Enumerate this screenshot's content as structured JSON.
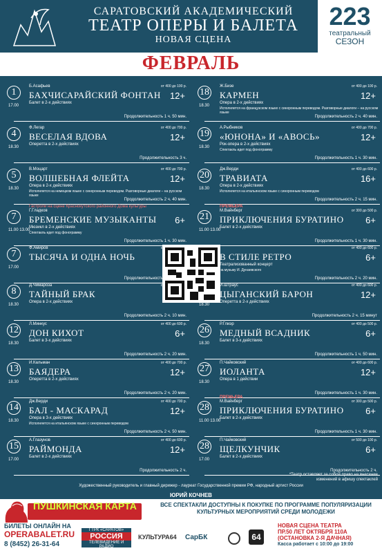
{
  "header": {
    "line1": "САРАТОВСКИЙ АКАДЕМИЧЕСКИЙ",
    "line2": "ТЕАТР ОПЕРЫ И БАЛЕТА",
    "line3": "НОВАЯ СЦЕНА"
  },
  "season": {
    "number": "223",
    "line1": "театральный",
    "line2": "СЕЗОН"
  },
  "month": "ФЕВРАЛЬ",
  "left": [
    {
      "date": "1",
      "time": "17.00",
      "author": "Б.Асафьев",
      "price": "от 400 до 100 р.",
      "title": "БАХЧИСАРАЙСКИЙ ФОНТАН",
      "age": "12+",
      "sub": "Балет в 2-х действиях",
      "note": "",
      "dur": "Продолжительность 1 ч. 50 мин.",
      "extra": ""
    },
    {
      "date": "4",
      "time": "18.30",
      "author": "Ф.Легар",
      "price": "от 400 до 700 р.",
      "title": "ВЕСЕЛАЯ ВДОВА",
      "age": "12+",
      "sub": "Оперетта в 2-х действиях",
      "note": "",
      "dur": "Продолжительность 3 ч.",
      "extra": ""
    },
    {
      "date": "5",
      "time": "18.30",
      "author": "В.Моцарт",
      "price": "от 400 до 700 р.",
      "title": "ВОЛШЕБНАЯ ФЛЕЙТА",
      "age": "12+",
      "sub": "Опера в 2-х действиях",
      "note": "Исполняется на немецком языке с синхронным переводом. Разговорные диалоги – на русском языке",
      "dur": "Продолжительность 2 ч. 40 мин.",
      "extra": ""
    },
    {
      "date": "7",
      "time": "11.00 13.00",
      "author": "Г.Гладков",
      "price": "",
      "title": "БРЕМЕНСКИЕ МУЗЫКАНТЫ",
      "age": "6+",
      "sub": "Мюзикл в 2-х действиях",
      "note": "Спектакль идет под фонограмму",
      "dur": "Продолжительность 1 ч. 30 мин.",
      "extra": "Гастроли на сцене Краснокутского районного Дома культуры"
    },
    {
      "date": "7",
      "time": "17.00",
      "author": "Ф.Амиров",
      "price": "от 400 до 700 р.",
      "title": "ТЫСЯЧА И ОДНА НОЧЬ",
      "age": "12+",
      "sub": "",
      "note": "",
      "dur": "Продолжительность 1 ч. 30 мин.",
      "extra": ""
    },
    {
      "date": "8",
      "time": "18.30",
      "author": "Д.Чимароза",
      "price": "от 400 до 600 р.",
      "title": "ТАЙНЫЙ БРАК",
      "age": "12+",
      "sub": "Опера в 2-х действиях",
      "note": "",
      "dur": "Продолжительность 2 ч. 10 мин.",
      "extra": ""
    },
    {
      "date": "12",
      "time": "18.30",
      "author": "Л.Минкус",
      "price": "от 400 до 600 р.",
      "title": "ДОН КИХОТ",
      "age": "6+",
      "sub": "Балет в 3-х действиях",
      "note": "",
      "dur": "Продолжительность 2 ч. 20 мин.",
      "extra": ""
    },
    {
      "date": "13",
      "time": "18.30",
      "author": "И.Кальман",
      "price": "от 400 до 700 р.",
      "title": "БАЯДЕРА",
      "age": "12+",
      "sub": "Оперетта в 2-х действиях",
      "note": "",
      "dur": "Продолжительность 2 ч. 20 мин.",
      "extra": ""
    },
    {
      "date": "14",
      "time": "18.30",
      "author": "Дж.Верди",
      "price": "от 400 до 700 р.",
      "title": "БАЛ - МАСКАРАД",
      "age": "12+",
      "sub": "Опера в 3-х действиях",
      "note": "Исполняется на итальянском языке с синхронным переводом",
      "dur": "Продолжительность 2 ч. 50 мин.",
      "extra": ""
    },
    {
      "date": "15",
      "time": "17.00",
      "author": "А.Глазунов",
      "price": "от 400 до 600 р.",
      "title": "РАЙМОНДА",
      "age": "12+",
      "sub": "Балет в 2-х действиях",
      "note": "",
      "dur": "Продолжительность 2 ч.",
      "extra": ""
    }
  ],
  "right": [
    {
      "date": "18",
      "time": "18.30",
      "author": "Ж.Бизе",
      "price": "от 400 до 100 р.",
      "title": "КАРМЕН",
      "age": "12+",
      "sub": "Опера в 2-х действиях",
      "note": "Исполняется на французском языке с синхронным переводом. Разговорные диалоги – на русском языке",
      "dur": "Продолжительность 2 ч. 40 мин.",
      "extra": ""
    },
    {
      "date": "19",
      "time": "18.30",
      "author": "А.Рыбников",
      "price": "от 400 до 700 р.",
      "title": "«ЮНОНА» И «АВОСЬ»",
      "age": "12+",
      "sub": "Рок-опера в 2-х действиях",
      "note": "Спектакль идет под фонограмму",
      "dur": "Продолжительность 1 ч. 30 мин.",
      "extra": ""
    },
    {
      "date": "20",
      "time": "18.30",
      "author": "Дж.Верди",
      "price": "от 400 до 600 р.",
      "title": "ТРАВИАТА",
      "age": "16+",
      "sub": "Опера в 2-х действиях",
      "note": "Исполняется на итальянском языке с синхронным переводом",
      "dur": "Продолжительность 2 ч. 15 мин.",
      "extra": ""
    },
    {
      "date": "21",
      "time": "11.00 13.00",
      "author": "М.Вайнберг",
      "price": "от 300 до 500 р.",
      "title": "ПРИКЛЮЧЕНИЯ БУРАТИНО",
      "age": "6+",
      "sub": "Балет в 2-х действиях",
      "note": "",
      "dur": "Продолжительность 1 ч. 30 мин.",
      "extra": "ПРЕМЬЕРА"
    },
    {
      "date": "22",
      "time": "17.00",
      "author": "",
      "price": "от 400 до 600 р.",
      "title": "В СТИЛЕ РЕТРО",
      "age": "6+",
      "sub": "Театрализованный концерт",
      "note": "на музыку И. Дунаевского",
      "dur": "Продолжительность 2 ч. 20 мин.",
      "extra": ""
    },
    {
      "date": "25",
      "time": "18.30",
      "author": "И.Штраус",
      "price": "от 400 до 600 р.",
      "title": "ЦЫГАНСКИЙ БАРОН",
      "age": "12+",
      "sub": "Оперетта в 2-х действиях",
      "note": "",
      "dur": "Продолжительность 2 ч. 15 минут",
      "extra": ""
    },
    {
      "date": "26",
      "time": "18.30",
      "author": "Р.Глиэр",
      "price": "от 400 до 500 р.",
      "title": "МЕДНЫЙ ВСАДНИК",
      "age": "6+",
      "sub": "Балет в 3-х действиях",
      "note": "",
      "dur": "Продолжительность 1 ч. 50 мин.",
      "extra": ""
    },
    {
      "date": "27",
      "time": "18.30",
      "author": "П.Чайковский",
      "price": "от 400 до 600 р.",
      "title": "ИОЛАНТА",
      "age": "12+",
      "sub": "Опера в 1 действии",
      "note": "",
      "dur": "Продолжительность 1 ч. 30 мин.",
      "extra": ""
    },
    {
      "date": "28",
      "time": "11.00 13.00",
      "author": "М.Вайнберг",
      "price": "от 300 до 500 р.",
      "title": "ПРИКЛЮЧЕНИЯ БУРАТИНО",
      "age": "6+",
      "sub": "Балет в 2-х действиях",
      "note": "",
      "dur": "Продолжительность 1 ч. 30 мин.",
      "extra": "ПРЕМЬЕРА"
    },
    {
      "date": "28",
      "time": "17.00",
      "author": "П.Чайковский",
      "price": "от 500 до 100 р.",
      "title": "ЩЕЛКУНЧИК",
      "age": "6+",
      "sub": "Балет в 2-х действиях",
      "note": "",
      "dur": "Продолжительность 2 ч.",
      "extra": ""
    }
  ],
  "footnote": "*Театр оставляет за собой право на внесение изменений в афишу спектаклей",
  "director": "Художественный руководитель и главный дирижер - лауреат Государственной премии РФ, народный артист России",
  "director_name": "ЮРИЙ КОЧНЕВ",
  "pushkin": "ПУШКИНСКАЯ КАРТА",
  "promo": "ВСЕ СПЕКТАКЛИ ДОСТУПНЫ К ПОКУПКЕ ПО ПРОГРАММЕ ПОПУЛЯРИЗАЦИИ КУЛЬТУРНЫХ МЕРОПРИЯТИЙ СРЕДИ МОЛОДЕЖИ",
  "buy": "БИЛЕТЫ ОНЛАЙН НА",
  "site": "OPERABALET.RU",
  "phone": "8 (8452) 26-31-64",
  "sponsors": {
    "rossia_top": "ГТРК «САРАТОВ»",
    "rossia": "РОССИЯ",
    "rossia_bottom": "ТЕЛЕВИДЕНИЕ И РАДИО",
    "kultura": "КУЛЬТУРА64",
    "sarbk": "СарБК",
    "ch64": "64"
  },
  "address": {
    "l1": "НОВАЯ СЦЕНА ТЕАТРА",
    "l2": "ПР.50 ЛЕТ ОКТЯБРЯ 110А",
    "l3": "(ОСТАНОВКА 2-Я ДАЧНАЯ)",
    "hours": "Касса работает с 10:00 до 19:00"
  },
  "colors": {
    "bg": "#1e4f66",
    "accent": "#c8262c",
    "pushkin_text": "#d6ff3a"
  }
}
